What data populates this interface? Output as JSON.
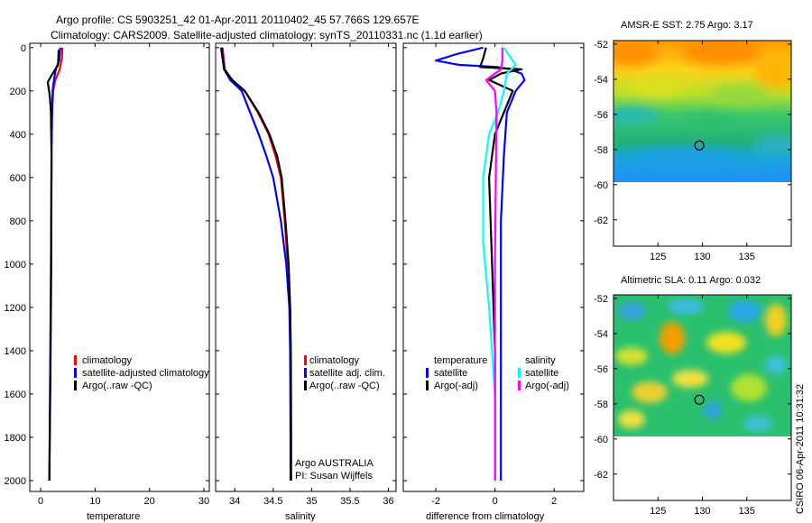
{
  "header": {
    "line1": "Argo profile: CS 5903251_42 01-Apr-2011 20110402_45 57.766S 129.657E",
    "line2": "Climatology: CARS2009. Satellite-adjusted climatology: synTS_20110331.nc (1.1d earlier)"
  },
  "footer_vertical": "CSIRO 06-Apr-2011 10:31:32",
  "colors": {
    "red": "#ff0000",
    "blue": "#0000ff",
    "black": "#000000",
    "cyan": "#00ffff",
    "magenta": "#ff00ff"
  },
  "legends": {
    "temperature": [
      "climatology",
      "satellite-adjusted climatology",
      "Argo(..raw -QC)"
    ],
    "salinity": [
      "climatology",
      "satellite adj. clim.",
      "Argo(..raw -QC)"
    ],
    "difference": {
      "temp_header": "temperature",
      "sal_header": "salinity",
      "temp_items": [
        "satellite",
        "Argo(-adj)"
      ],
      "sal_items": [
        "satellite",
        "Argo(-adj)"
      ]
    },
    "credit": [
      "Argo AUSTRALIA",
      "PI: Susan Wijffels"
    ]
  },
  "chart_data": [
    {
      "type": "line",
      "panel": "temperature",
      "xlabel": "temperature",
      "ylabel": "",
      "xlim": [
        -2,
        31
      ],
      "ylim": [
        2050,
        -20
      ],
      "xticks": [
        0,
        10,
        20,
        30
      ],
      "yticks": [
        0,
        200,
        400,
        600,
        800,
        1000,
        1200,
        1400,
        1600,
        1800,
        2000
      ],
      "series": [
        {
          "name": "climatology",
          "color": "red",
          "x": [
            4.0,
            3.9,
            3.5,
            2.7,
            2.3,
            2.1,
            2.0,
            1.9
          ],
          "y": [
            0,
            50,
            100,
            150,
            200,
            300,
            400,
            350
          ]
        },
        {
          "name": "satellite-adjusted climatology",
          "color": "blue",
          "x": [
            3.6,
            3.4,
            2.8,
            2.5,
            2.2,
            2.1,
            2.0,
            1.9,
            1.75,
            1.6
          ],
          "y": [
            0,
            60,
            100,
            140,
            200,
            300,
            500,
            1000,
            1500,
            2000
          ]
        },
        {
          "name": "Argo(..raw -QC)",
          "color": "black",
          "x": [
            3.3,
            3.2,
            2.2,
            1.3,
            1.5,
            1.7,
            1.9,
            2.0,
            1.95,
            1.8,
            1.6
          ],
          "y": [
            10,
            80,
            120,
            160,
            190,
            230,
            300,
            500,
            1000,
            1500,
            2000
          ]
        }
      ]
    },
    {
      "type": "line",
      "panel": "salinity",
      "xlabel": "salinity",
      "ylabel": "",
      "xlim": [
        33.75,
        36.1
      ],
      "ylim": [
        2050,
        -20
      ],
      "xticks": [
        34,
        34.5,
        35,
        35.5,
        36
      ],
      "series": [
        {
          "name": "climatology",
          "color": "red",
          "x": [
            33.84,
            33.87,
            33.96,
            34.13,
            34.3,
            34.44,
            34.53,
            34.6,
            34.65,
            34.69,
            34.72,
            34.73,
            34.735,
            34.735
          ],
          "y": [
            0,
            100,
            150,
            200,
            300,
            400,
            500,
            600,
            800,
            1000,
            1200,
            1400,
            1800,
            2000
          ]
        },
        {
          "name": "satellite adj. clim.",
          "color": "blue",
          "x": [
            33.83,
            33.86,
            33.94,
            34.09,
            34.2,
            34.31,
            34.41,
            34.5,
            34.6,
            34.67,
            34.71,
            34.72,
            34.725,
            34.725
          ],
          "y": [
            0,
            100,
            150,
            200,
            300,
            400,
            500,
            600,
            800,
            1000,
            1200,
            1400,
            1800,
            2000
          ]
        },
        {
          "name": "Argo(..raw -QC)",
          "color": "black",
          "x": [
            33.82,
            33.86,
            33.97,
            34.13,
            34.31,
            34.45,
            34.55,
            34.61,
            34.66,
            34.7,
            34.72,
            34.73,
            34.73
          ],
          "y": [
            0,
            100,
            150,
            200,
            300,
            400,
            500,
            600,
            800,
            1000,
            1200,
            1500,
            2000
          ]
        }
      ]
    },
    {
      "type": "line",
      "panel": "difference",
      "xlabel": "difference from climatology",
      "ylabel": "",
      "xlim": [
        -3.1,
        3.0
      ],
      "ylim": [
        2050,
        -20
      ],
      "xticks": [
        -2,
        0,
        2
      ],
      "series": [
        {
          "name": "temperature satellite",
          "color": "blue",
          "x": [
            -0.4,
            -1.3,
            -2.0,
            -1.2,
            0.1,
            0.5,
            0.9,
            1.0,
            0.7,
            0.4,
            0.3,
            0.2,
            0.2,
            0.2,
            0.2
          ],
          "y": [
            0,
            30,
            60,
            80,
            90,
            100,
            120,
            150,
            200,
            300,
            500,
            800,
            1200,
            1600,
            2000
          ]
        },
        {
          "name": "temperature Argo(-adj)",
          "color": "black",
          "x": [
            -0.3,
            -0.4,
            -0.5,
            0.9,
            0.2,
            -0.2,
            0.6,
            0.3,
            0.0,
            -0.2,
            -0.1,
            0.0,
            0.0,
            0.0
          ],
          "y": [
            0,
            50,
            90,
            100,
            120,
            150,
            200,
            300,
            400,
            600,
            1000,
            1400,
            1800,
            2000
          ]
        },
        {
          "name": "salinity satellite",
          "color": "cyan",
          "x": [
            0.3,
            0.5,
            0.7,
            0.4,
            0.3,
            0.1,
            -0.2,
            -0.4,
            -0.4,
            -0.2,
            0.0,
            0.0
          ],
          "y": [
            0,
            40,
            80,
            120,
            200,
            300,
            400,
            600,
            900,
            1200,
            1600,
            2000
          ]
        },
        {
          "name": "salinity Argo(-adj)",
          "color": "magenta",
          "x": [
            0.25,
            0.25,
            0.2,
            -0.3,
            0.0,
            0.05,
            0.0,
            0.0
          ],
          "y": [
            0,
            60,
            100,
            150,
            200,
            300,
            1000,
            2000
          ]
        }
      ]
    },
    {
      "type": "heatmap",
      "panel": "sst-map",
      "title": "AMSR-E SST: 2.75 Argo: 3.17",
      "xlim": [
        120,
        140
      ],
      "ylim": [
        -63.5,
        -51.8
      ],
      "xticks": [
        125,
        130,
        135
      ],
      "yticks": [
        -52,
        -54,
        -56,
        -58,
        -60,
        -62
      ],
      "data_extent_lat": [
        -60,
        -51.8
      ],
      "marker": {
        "lon": 129.657,
        "lat": -57.766
      }
    },
    {
      "type": "heatmap",
      "panel": "sla-map",
      "title": "Altimetric SLA: 0.11 Argo: 0.032",
      "xlim": [
        120,
        140
      ],
      "ylim": [
        -63.5,
        -51.8
      ],
      "xticks": [
        125,
        130,
        135
      ],
      "yticks": [
        -52,
        -54,
        -56,
        -58,
        -60,
        -62
      ],
      "data_extent_lat": [
        -60,
        -51.8
      ],
      "marker": {
        "lon": 129.657,
        "lat": -57.766
      }
    }
  ]
}
